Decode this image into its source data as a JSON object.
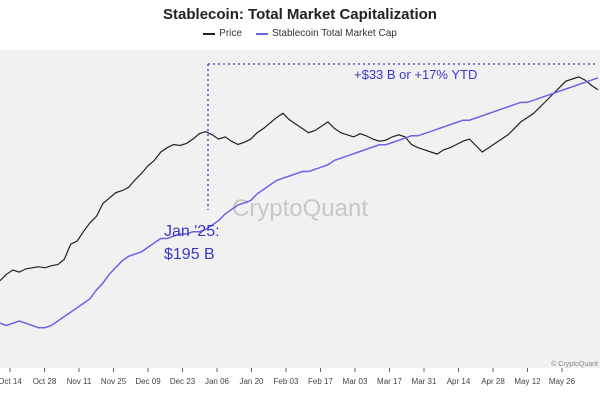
{
  "chart_data": {
    "type": "line",
    "title": "Stablecoin: Total Market Capitalization",
    "xlabel": "",
    "ylabel": "",
    "x_tick_labels": [
      "Oct 14",
      "Oct 28",
      "Nov 11",
      "Nov 25",
      "Dec 09",
      "Dec 23",
      "Jan 06",
      "Jan 20",
      "Feb 03",
      "Feb 17",
      "Mar 03",
      "Mar 17",
      "Mar 31",
      "Apr 14",
      "Apr 28",
      "May 12",
      "May 26"
    ],
    "grid": false,
    "legend_position": "top-center",
    "series": [
      {
        "name": "Price",
        "color": "#222222",
        "values": [
          58,
          64,
          68,
          66,
          69,
          70,
          71,
          70,
          72,
          73,
          78,
          92,
          95,
          104,
          112,
          118,
          130,
          135,
          140,
          142,
          145,
          152,
          158,
          165,
          170,
          178,
          182,
          185,
          184,
          186,
          190,
          195,
          197,
          194,
          190,
          192,
          188,
          185,
          187,
          190,
          196,
          200,
          205,
          210,
          214,
          208,
          204,
          200,
          196,
          198,
          202,
          206,
          200,
          196,
          194,
          192,
          195,
          193,
          190,
          188,
          189,
          192,
          194,
          192,
          185,
          182,
          180,
          178,
          176,
          180,
          182,
          185,
          188,
          190,
          184,
          178,
          182,
          186,
          190,
          194,
          200,
          206,
          210,
          214,
          220,
          226,
          232,
          238,
          244,
          246,
          248,
          245,
          240,
          236
        ]
      },
      {
        "name": "Stablecoin Total Market Cap",
        "color": "#6b63e8",
        "values": [
          42,
          41,
          42,
          43,
          42,
          41,
          40,
          40,
          41,
          43,
          45,
          47,
          49,
          51,
          53,
          57,
          60,
          64,
          67,
          70,
          72,
          73,
          74,
          76,
          78,
          80,
          80,
          81,
          82,
          82,
          83,
          83,
          84,
          86,
          88,
          91,
          93,
          95,
          96,
          97,
          100,
          102,
          104,
          106,
          107,
          108,
          109,
          110,
          110,
          111,
          112,
          113,
          115,
          116,
          117,
          118,
          119,
          120,
          121,
          122,
          122,
          123,
          124,
          125,
          126,
          126,
          127,
          128,
          129,
          130,
          131,
          132,
          133,
          133,
          134,
          135,
          136,
          137,
          138,
          139,
          140,
          141,
          141,
          142,
          143,
          144,
          145,
          146,
          147,
          148,
          149,
          150,
          151,
          152
        ]
      }
    ],
    "annotations": [
      {
        "text_line1": "Jan '25:",
        "text_line2": "$195 B",
        "color": "#3a39c9"
      },
      {
        "text": "+$33 B or +17% YTD",
        "color": "#3a39c9"
      }
    ],
    "watermark": "CryptoQuant",
    "credit": "© CryptoQuant"
  }
}
